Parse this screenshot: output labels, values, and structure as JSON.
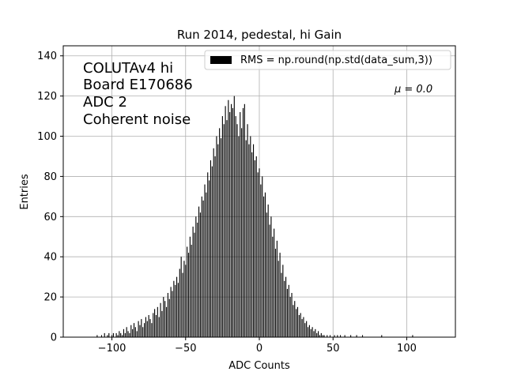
{
  "chart_data": {
    "type": "bar",
    "title": "Run 2014, pedestal, hi Gain",
    "xlabel": "ADC Counts",
    "ylabel": "Entries",
    "xlim": [
      -133,
      133
    ],
    "ylim": [
      0,
      145
    ],
    "xticks": [
      -100,
      -50,
      0,
      50,
      100
    ],
    "yticks": [
      0,
      20,
      40,
      60,
      80,
      100,
      120,
      140
    ],
    "grid": true,
    "legend": {
      "location": "upper right",
      "label": "RMS = np.round(np.std(data_sum,3))"
    },
    "annotations": {
      "info_lines": [
        "COLUTAv4 hi",
        "Board E170686",
        "ADC 2",
        "Coherent noise"
      ],
      "mu": "μ = 0.0"
    },
    "series": [
      {
        "name": "RMS = np.round(np.std(data_sum,3))",
        "bin_start": -110,
        "bin_step": 1,
        "values": [
          1,
          0,
          0,
          1,
          0,
          2,
          0,
          1,
          2,
          0,
          1,
          2,
          0,
          2,
          1,
          3,
          2,
          1,
          4,
          2,
          5,
          3,
          2,
          6,
          4,
          7,
          5,
          3,
          8,
          6,
          9,
          5,
          7,
          10,
          8,
          11,
          9,
          7,
          12,
          14,
          11,
          15,
          10,
          17,
          13,
          20,
          18,
          15,
          22,
          19,
          25,
          23,
          28,
          26,
          30,
          27,
          34,
          40,
          32,
          38,
          36,
          45,
          42,
          50,
          46,
          55,
          52,
          60,
          57,
          65,
          62,
          70,
          68,
          76,
          72,
          82,
          78,
          88,
          85,
          94,
          90,
          100,
          96,
          104,
          99,
          110,
          106,
          115,
          108,
          118,
          112,
          116,
          114,
          120,
          110,
          106,
          100,
          112,
          104,
          114,
          116,
          98,
          106,
          96,
          100,
          92,
          96,
          88,
          90,
          82,
          84,
          76,
          80,
          70,
          72,
          62,
          66,
          56,
          60,
          50,
          54,
          44,
          48,
          38,
          42,
          32,
          36,
          28,
          30,
          24,
          26,
          20,
          22,
          16,
          18,
          14,
          15,
          11,
          12,
          9,
          10,
          7,
          8,
          5,
          6,
          4,
          5,
          3,
          4,
          2,
          3,
          1,
          2,
          1,
          1,
          0,
          1,
          0,
          1,
          0,
          0,
          1,
          0,
          1,
          0,
          1,
          0,
          0,
          1,
          0,
          0,
          0,
          1,
          0,
          0,
          0,
          1,
          0,
          0,
          0,
          1,
          0,
          0,
          0,
          0,
          0,
          0,
          0,
          0,
          0,
          0,
          0,
          0,
          1,
          0,
          0,
          0,
          0,
          0,
          0,
          0,
          0,
          0,
          0,
          0,
          0,
          0,
          0,
          0,
          0,
          0,
          0,
          0,
          0,
          1
        ]
      }
    ]
  }
}
